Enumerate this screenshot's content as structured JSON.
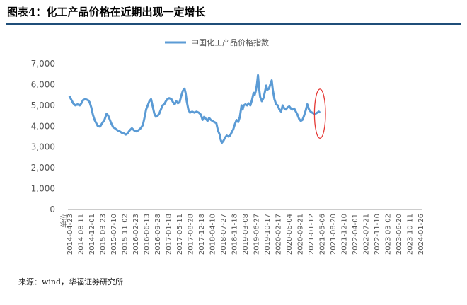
{
  "figure_title": "图表4：化工产品价格在近期出现一定增长",
  "source": "来源：wind，华福证券研究所",
  "chart_data": {
    "type": "line",
    "legend": "中国化工产品价格指数",
    "legend_position": "top-center",
    "line_color": "#5b9bd5",
    "annotation_color": "#e53935",
    "y_ticks": [
      "0",
      "1,000",
      "2,000",
      "3,000",
      "4,000",
      "5,000",
      "6,000",
      "7,000"
    ],
    "ylim": [
      0,
      7000
    ],
    "x_unit_label": "单位",
    "x_ticks": [
      "2014-04-23",
      "2014-08-11",
      "2014-12-01",
      "2015-03-23",
      "2015-07-10",
      "2015-11-02",
      "2016-02-23",
      "2016-06-13",
      "2016-09-28",
      "2017-01-18",
      "2017-05-11",
      "2017-08-28",
      "2017-12-18",
      "2018-04-10",
      "2018-07-27",
      "2018-11-18",
      "2019-03-08",
      "2019-06-27",
      "2019-10-17",
      "2020-02-17",
      "2020-06-04",
      "2020-09-21",
      "2021-01-12",
      "2021-05-06",
      "2021-08-20",
      "2021-12-10",
      "2022-04-01",
      "2022-07-21",
      "2022-11-10",
      "2023-03-02",
      "2023-06-20",
      "2023-10-11",
      "2024-01-26"
    ],
    "grid": false,
    "series": [
      {
        "values": [
          [
            0,
            5450
          ],
          [
            0.15,
            5300
          ],
          [
            0.35,
            5100
          ],
          [
            0.55,
            5000
          ],
          [
            0.75,
            5050
          ],
          [
            0.95,
            5000
          ],
          [
            1.1,
            5100
          ],
          [
            1.25,
            5250
          ],
          [
            1.45,
            5300
          ],
          [
            1.7,
            5250
          ],
          [
            1.85,
            5150
          ],
          [
            2.0,
            4900
          ],
          [
            2.15,
            4550
          ],
          [
            2.3,
            4300
          ],
          [
            2.45,
            4150
          ],
          [
            2.6,
            4000
          ],
          [
            2.8,
            3980
          ],
          [
            3.0,
            4150
          ],
          [
            3.2,
            4300
          ],
          [
            3.4,
            4600
          ],
          [
            3.55,
            4500
          ],
          [
            3.7,
            4300
          ],
          [
            3.85,
            4100
          ],
          [
            4.0,
            3950
          ],
          [
            4.2,
            3880
          ],
          [
            4.4,
            3800
          ],
          [
            4.6,
            3750
          ],
          [
            4.8,
            3680
          ],
          [
            5.0,
            3650
          ],
          [
            5.15,
            3600
          ],
          [
            5.3,
            3650
          ],
          [
            5.5,
            3800
          ],
          [
            5.7,
            3900
          ],
          [
            5.9,
            3800
          ],
          [
            6.1,
            3750
          ],
          [
            6.3,
            3800
          ],
          [
            6.5,
            3900
          ],
          [
            6.7,
            4050
          ],
          [
            6.85,
            4400
          ],
          [
            7.0,
            4800
          ],
          [
            7.15,
            5000
          ],
          [
            7.3,
            5200
          ],
          [
            7.45,
            5300
          ],
          [
            7.6,
            4950
          ],
          [
            7.75,
            4600
          ],
          [
            7.9,
            4450
          ],
          [
            8.05,
            4500
          ],
          [
            8.2,
            4600
          ],
          [
            8.35,
            4800
          ],
          [
            8.5,
            5000
          ],
          [
            8.65,
            5050
          ],
          [
            8.8,
            5200
          ],
          [
            8.95,
            5300
          ],
          [
            9.1,
            5350
          ],
          [
            9.3,
            5300
          ],
          [
            9.45,
            5150
          ],
          [
            9.6,
            5050
          ],
          [
            9.75,
            5200
          ],
          [
            9.9,
            5100
          ],
          [
            10.05,
            5150
          ],
          [
            10.2,
            5450
          ],
          [
            10.35,
            5700
          ],
          [
            10.5,
            5800
          ],
          [
            10.6,
            5600
          ],
          [
            10.7,
            5200
          ],
          [
            10.85,
            4800
          ],
          [
            11.0,
            4650
          ],
          [
            11.2,
            4700
          ],
          [
            11.4,
            4650
          ],
          [
            11.6,
            4700
          ],
          [
            11.8,
            4650
          ],
          [
            12.0,
            4550
          ],
          [
            12.15,
            4300
          ],
          [
            12.3,
            4450
          ],
          [
            12.45,
            4350
          ],
          [
            12.6,
            4250
          ],
          [
            12.75,
            4400
          ],
          [
            12.9,
            4300
          ],
          [
            13.05,
            4250
          ],
          [
            13.2,
            4200
          ],
          [
            13.4,
            4150
          ],
          [
            13.55,
            3800
          ],
          [
            13.7,
            3600
          ],
          [
            13.8,
            3350
          ],
          [
            13.9,
            3200
          ],
          [
            14.05,
            3300
          ],
          [
            14.2,
            3450
          ],
          [
            14.35,
            3550
          ],
          [
            14.5,
            3500
          ],
          [
            14.65,
            3550
          ],
          [
            14.8,
            3700
          ],
          [
            14.95,
            3850
          ],
          [
            15.1,
            4100
          ],
          [
            15.25,
            4300
          ],
          [
            15.4,
            4200
          ],
          [
            15.55,
            4450
          ],
          [
            15.7,
            5000
          ],
          [
            15.8,
            4800
          ],
          [
            15.9,
            5000
          ],
          [
            16.05,
            5050
          ],
          [
            16.2,
            5000
          ],
          [
            16.35,
            5100
          ],
          [
            16.5,
            5000
          ],
          [
            16.65,
            5250
          ],
          [
            16.8,
            5600
          ],
          [
            16.9,
            5500
          ],
          [
            17.0,
            5700
          ],
          [
            17.1,
            6000
          ],
          [
            17.2,
            6450
          ],
          [
            17.3,
            5800
          ],
          [
            17.4,
            5400
          ],
          [
            17.55,
            5200
          ],
          [
            17.7,
            5350
          ],
          [
            17.85,
            5700
          ],
          [
            17.95,
            5950
          ],
          [
            18.05,
            5750
          ],
          [
            18.2,
            5800
          ],
          [
            18.35,
            6050
          ],
          [
            18.45,
            6200
          ],
          [
            18.55,
            5750
          ],
          [
            18.7,
            5300
          ],
          [
            18.85,
            5050
          ],
          [
            19.0,
            5000
          ],
          [
            19.15,
            4800
          ],
          [
            19.3,
            4700
          ],
          [
            19.45,
            5000
          ],
          [
            19.6,
            4850
          ],
          [
            19.75,
            4800
          ],
          [
            19.9,
            4900
          ],
          [
            20.05,
            4950
          ],
          [
            20.2,
            4850
          ],
          [
            20.35,
            4800
          ],
          [
            20.5,
            4850
          ],
          [
            20.65,
            4700
          ],
          [
            20.8,
            4550
          ],
          [
            20.95,
            4350
          ],
          [
            21.1,
            4250
          ],
          [
            21.25,
            4300
          ],
          [
            21.4,
            4500
          ],
          [
            21.55,
            4750
          ],
          [
            21.7,
            5050
          ],
          [
            21.85,
            4800
          ],
          [
            22.0,
            4700
          ],
          [
            22.15,
            4650
          ],
          [
            22.3,
            4600
          ],
          [
            22.45,
            4600
          ],
          [
            22.6,
            4650
          ],
          [
            22.75,
            4700
          ],
          [
            22.85,
            4650
          ]
        ]
      }
    ],
    "highlight_ellipse": {
      "x_center": 22.85,
      "y_center": 4600,
      "x_radius": 0.5,
      "y_radius": 1180
    }
  }
}
